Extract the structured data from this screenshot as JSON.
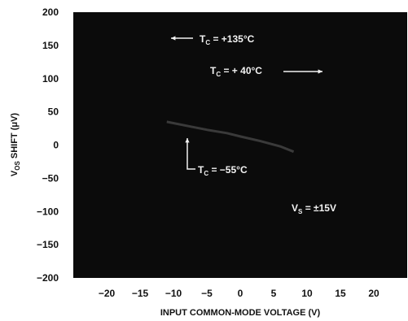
{
  "chart_data": {
    "type": "line",
    "title": "",
    "xlabel": "INPUT COMMON-MODE VOLTAGE (V)",
    "ylabel_main": "V",
    "ylabel_sub": "OS",
    "ylabel_rest": " SHIFT (μV)",
    "xlim": [
      -25,
      25
    ],
    "ylim": [
      -200,
      200
    ],
    "x_ticks": [
      "−20",
      "−15",
      "−10",
      "−5",
      "0",
      "5",
      "10",
      "15",
      "20"
    ],
    "x_tick_values": [
      -20,
      -15,
      -10,
      -5,
      0,
      5,
      10,
      15,
      20
    ],
    "y_ticks": [
      "200",
      "150",
      "100",
      "50",
      "0",
      "−50",
      "−100",
      "−150",
      "−200"
    ],
    "y_tick_values": [
      200,
      150,
      100,
      50,
      0,
      -50,
      -100,
      -150,
      -200
    ],
    "background_color": "#0b0b0b",
    "series": [
      {
        "name": "Tₓ = +40°C",
        "x": [
          -11,
          -8,
          -5,
          -2,
          0,
          3,
          6,
          8
        ],
        "y": [
          35,
          29,
          23,
          18,
          13,
          6,
          -2,
          -10
        ],
        "color": "#3a3a3a"
      }
    ],
    "annotations": [
      {
        "main": "T",
        "sub": "C",
        "rest": " = +135°C",
        "arrow": "left"
      },
      {
        "main": "T",
        "sub": "C",
        "rest": " = + 40°C",
        "arrow": "right"
      },
      {
        "main": "T",
        "sub": "C",
        "rest": " = −55°C",
        "arrow": "up"
      },
      {
        "main": "V",
        "sub": "S",
        "rest": " = ±15V",
        "arrow": "none"
      }
    ]
  }
}
